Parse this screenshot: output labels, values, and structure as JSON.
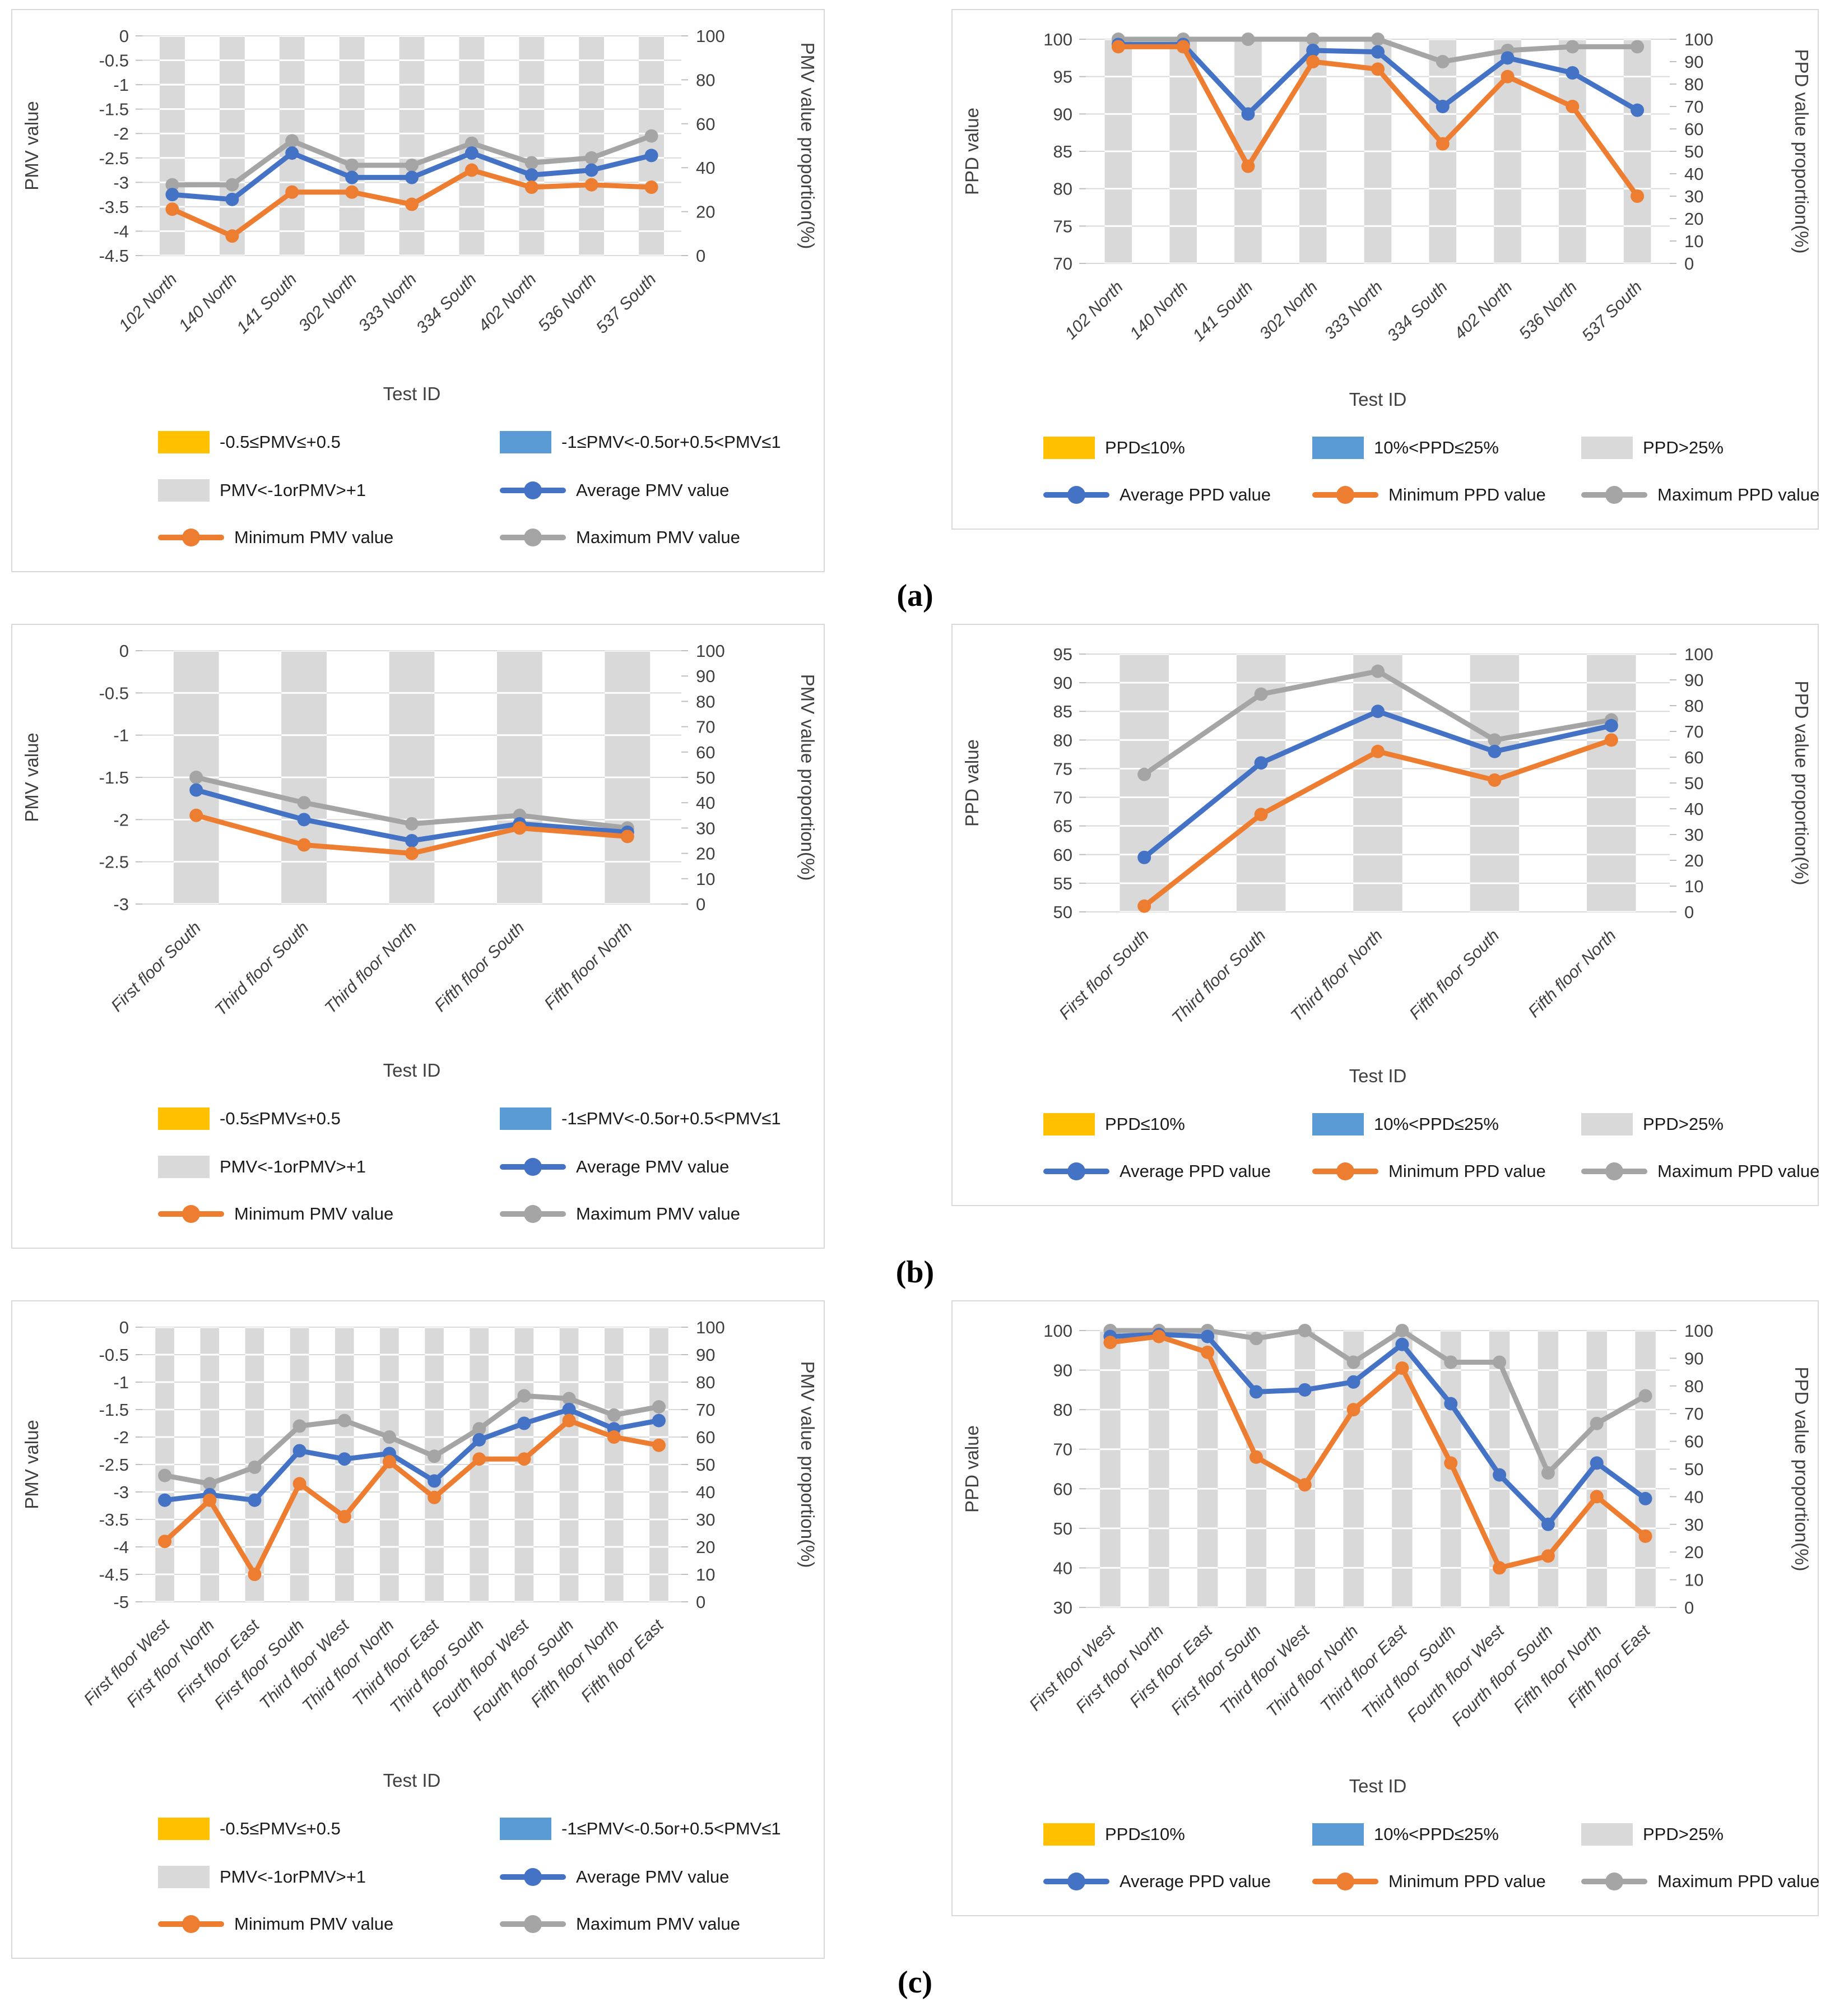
{
  "page": {
    "panel_labels": [
      "(a)",
      "(b)",
      "(c)"
    ]
  },
  "colors": {
    "average_line": "#4472C4",
    "minimum_line": "#ED7D31",
    "maximum_line": "#A5A5A5",
    "bar_fill": "#D9D9D9",
    "gridline": "#D9D9D9",
    "legend_yellow": "#FFC000",
    "legend_blue": "#5B9BD5",
    "legend_gray": "#D9D9D9",
    "tick_text": "#404040"
  },
  "chart_data": [
    {
      "type": "line",
      "panel": "a",
      "side": "left",
      "xlabel": "Test ID",
      "ylabel": "PMV value",
      "y2label": "PMV value proportion(%)",
      "categories": [
        "102 North",
        "140 North",
        "141 South",
        "302 North",
        "333 North",
        "334 South",
        "402 North",
        "536 North",
        "537 South"
      ],
      "left_axis": {
        "min": -4.5,
        "max": 0,
        "step": 0.5
      },
      "right_axis": {
        "min": 0,
        "max": 100,
        "step": 20
      },
      "bar_series": {
        "name": "PMV<-1orPMV>+1",
        "axis": "right",
        "values": [
          100,
          100,
          100,
          100,
          100,
          100,
          100,
          100,
          100
        ]
      },
      "series": [
        {
          "role": "max",
          "name": "Maximum PMV value",
          "values": [
            -3.05,
            -3.05,
            -2.15,
            -2.65,
            -2.65,
            -2.2,
            -2.6,
            -2.5,
            -2.05
          ]
        },
        {
          "role": "avg",
          "name": "Average PMV value",
          "values": [
            -3.25,
            -3.35,
            -2.4,
            -2.9,
            -2.9,
            -2.4,
            -2.85,
            -2.75,
            -2.45
          ]
        },
        {
          "role": "min",
          "name": "Minimum PMV value",
          "values": [
            -3.55,
            -4.1,
            -3.2,
            -3.2,
            -3.45,
            -2.75,
            -3.1,
            -3.05,
            -3.1
          ]
        }
      ],
      "legend": {
        "cols": 2,
        "rows": [
          [
            {
              "marker": "swatch",
              "color": "#FFC000",
              "label": "-0.5≤PMV≤+0.5"
            },
            {
              "marker": "swatch",
              "color": "#5B9BD5",
              "label": "-1≤PMV<-0.5or+0.5<PMV≤1"
            }
          ],
          [
            {
              "marker": "swatch",
              "color": "#D9D9D9",
              "label": "PMV<-1orPMV>+1"
            },
            {
              "marker": "line",
              "color": "#4472C4",
              "label": "Average PMV value"
            }
          ],
          [
            {
              "marker": "line",
              "color": "#ED7D31",
              "label": "Minimum PMV value"
            },
            {
              "marker": "line",
              "color": "#A5A5A5",
              "label": "Maximum PMV value"
            }
          ]
        ]
      }
    },
    {
      "type": "line",
      "panel": "a",
      "side": "right",
      "xlabel": "Test ID",
      "ylabel": "PPD value",
      "y2label": "PPD value proportion(%)",
      "categories": [
        "102 North",
        "140 North",
        "141 South",
        "302 North",
        "333 North",
        "334 South",
        "402 North",
        "536 North",
        "537 South"
      ],
      "left_axis": {
        "min": 70,
        "max": 100,
        "step": 5
      },
      "right_axis": {
        "min": 0,
        "max": 100,
        "step": 10
      },
      "bar_series": {
        "name": "PPD>25%",
        "axis": "right",
        "values": [
          100,
          100,
          100,
          100,
          100,
          100,
          100,
          100,
          100
        ]
      },
      "series": [
        {
          "role": "max",
          "name": "Maximum PPD value",
          "values": [
            100,
            100,
            100,
            100,
            100,
            97,
            98.5,
            99,
            99
          ]
        },
        {
          "role": "avg",
          "name": "Average PPD value",
          "values": [
            99.3,
            99.3,
            90,
            98.5,
            98.3,
            91,
            97.5,
            95.5,
            90.5
          ]
        },
        {
          "role": "min",
          "name": "Minimum PPD value",
          "values": [
            99,
            99,
            83,
            97,
            96,
            86,
            95,
            91,
            79
          ]
        }
      ],
      "legend": {
        "cols": 3,
        "rows": [
          [
            {
              "marker": "swatch",
              "color": "#FFC000",
              "label": "PPD≤10%"
            },
            {
              "marker": "swatch",
              "color": "#5B9BD5",
              "label": "10%<PPD≤25%"
            },
            {
              "marker": "swatch",
              "color": "#D9D9D9",
              "label": "PPD>25%"
            }
          ],
          [
            {
              "marker": "line",
              "color": "#4472C4",
              "label": "Average PPD value"
            },
            {
              "marker": "line",
              "color": "#ED7D31",
              "label": "Minimum PPD value"
            },
            {
              "marker": "line",
              "color": "#A5A5A5",
              "label": "Maximum PPD value"
            }
          ]
        ]
      }
    },
    {
      "type": "line",
      "panel": "b",
      "side": "left",
      "xlabel": "Test ID",
      "ylabel": "PMV value",
      "y2label": "PMV value proportion(%)",
      "categories": [
        "First floor South",
        "Third floor South",
        "Third floor North",
        "Fifth floor South",
        "Fifth floor North"
      ],
      "left_axis": {
        "min": -3,
        "max": 0,
        "step": 0.5
      },
      "right_axis": {
        "min": 0,
        "max": 100,
        "step": 10
      },
      "bar_series": {
        "name": "PMV<-1orPMV>+1",
        "axis": "right",
        "values": [
          100,
          100,
          100,
          100,
          100
        ]
      },
      "series": [
        {
          "role": "max",
          "name": "Maximum PMV value",
          "values": [
            -1.5,
            -1.8,
            -2.05,
            -1.95,
            -2.1
          ]
        },
        {
          "role": "avg",
          "name": "Average PMV value",
          "values": [
            -1.65,
            -2.0,
            -2.25,
            -2.05,
            -2.15
          ]
        },
        {
          "role": "min",
          "name": "Minimum PMV value",
          "values": [
            -1.95,
            -2.3,
            -2.4,
            -2.1,
            -2.2
          ]
        }
      ],
      "legend": {
        "cols": 2,
        "rows": [
          [
            {
              "marker": "swatch",
              "color": "#FFC000",
              "label": "-0.5≤PMV≤+0.5"
            },
            {
              "marker": "swatch",
              "color": "#5B9BD5",
              "label": "-1≤PMV<-0.5or+0.5<PMV≤1"
            }
          ],
          [
            {
              "marker": "swatch",
              "color": "#D9D9D9",
              "label": "PMV<-1orPMV>+1"
            },
            {
              "marker": "line",
              "color": "#4472C4",
              "label": "Average PMV value"
            }
          ],
          [
            {
              "marker": "line",
              "color": "#ED7D31",
              "label": "Minimum PMV value"
            },
            {
              "marker": "line",
              "color": "#A5A5A5",
              "label": "Maximum PMV value"
            }
          ]
        ]
      }
    },
    {
      "type": "line",
      "panel": "b",
      "side": "right",
      "xlabel": "Test ID",
      "ylabel": "PPD value",
      "y2label": "PPD value proportion(%)",
      "categories": [
        "First floor South",
        "Third floor South",
        "Third floor North",
        "Fifth floor South",
        "Fifth floor North"
      ],
      "left_axis": {
        "min": 50,
        "max": 95,
        "step": 5
      },
      "right_axis": {
        "min": 0,
        "max": 100,
        "step": 10
      },
      "bar_series": {
        "name": "PPD>25%",
        "axis": "right",
        "values": [
          100,
          100,
          100,
          100,
          100
        ]
      },
      "series": [
        {
          "role": "max",
          "name": "Maximum PPD value",
          "values": [
            74,
            88,
            92,
            80,
            83.5
          ]
        },
        {
          "role": "avg",
          "name": "Average PPD value",
          "values": [
            59.5,
            76,
            85,
            78,
            82.5
          ]
        },
        {
          "role": "min",
          "name": "Minimum PPD value",
          "values": [
            51,
            67,
            78,
            73,
            80
          ]
        }
      ],
      "legend": {
        "cols": 3,
        "rows": [
          [
            {
              "marker": "swatch",
              "color": "#FFC000",
              "label": "PPD≤10%"
            },
            {
              "marker": "swatch",
              "color": "#5B9BD5",
              "label": "10%<PPD≤25%"
            },
            {
              "marker": "swatch",
              "color": "#D9D9D9",
              "label": "PPD>25%"
            }
          ],
          [
            {
              "marker": "line",
              "color": "#4472C4",
              "label": "Average PPD value"
            },
            {
              "marker": "line",
              "color": "#ED7D31",
              "label": "Minimum PPD value"
            },
            {
              "marker": "line",
              "color": "#A5A5A5",
              "label": "Maximum PPD value"
            }
          ]
        ]
      }
    },
    {
      "type": "line",
      "panel": "c",
      "side": "left",
      "xlabel": "Test ID",
      "ylabel": "PMV value",
      "y2label": "PMV value proportion(%)",
      "categories": [
        "First floor West",
        "First floor North",
        "First floor East",
        "First floor South",
        "Third floor West",
        "Third floor North",
        "Third floor East",
        "Third floor South",
        "Fourth floor West",
        "Fourth floor South",
        "Fifth floor North",
        "Fifth floor East"
      ],
      "left_axis": {
        "min": -5,
        "max": 0,
        "step": 0.5
      },
      "right_axis": {
        "min": 0,
        "max": 100,
        "step": 10
      },
      "bar_series": {
        "name": "PMV<-1orPMV>+1",
        "axis": "right",
        "values": [
          100,
          100,
          100,
          100,
          100,
          100,
          100,
          100,
          100,
          100,
          100,
          100
        ]
      },
      "series": [
        {
          "role": "max",
          "name": "Maximum PMV value",
          "values": [
            -2.7,
            -2.85,
            -2.55,
            -1.8,
            -1.7,
            -2.0,
            -2.35,
            -1.85,
            -1.25,
            -1.3,
            -1.6,
            -1.45
          ]
        },
        {
          "role": "avg",
          "name": "Average PMV value",
          "values": [
            -3.15,
            -3.05,
            -3.15,
            -2.25,
            -2.4,
            -2.3,
            -2.8,
            -2.05,
            -1.75,
            -1.5,
            -1.85,
            -1.7
          ]
        },
        {
          "role": "min",
          "name": "Minimum PMV value",
          "values": [
            -3.9,
            -3.15,
            -4.5,
            -2.85,
            -3.45,
            -2.45,
            -3.1,
            -2.4,
            -2.4,
            -1.7,
            -2.0,
            -2.15
          ]
        }
      ],
      "legend": {
        "cols": 2,
        "rows": [
          [
            {
              "marker": "swatch",
              "color": "#FFC000",
              "label": "-0.5≤PMV≤+0.5"
            },
            {
              "marker": "swatch",
              "color": "#5B9BD5",
              "label": "-1≤PMV<-0.5or+0.5<PMV≤1"
            }
          ],
          [
            {
              "marker": "swatch",
              "color": "#D9D9D9",
              "label": "PMV<-1orPMV>+1"
            },
            {
              "marker": "line",
              "color": "#4472C4",
              "label": "Average PMV value"
            }
          ],
          [
            {
              "marker": "line",
              "color": "#ED7D31",
              "label": "Minimum PMV value"
            },
            {
              "marker": "line",
              "color": "#A5A5A5",
              "label": "Maximum PMV value"
            }
          ]
        ]
      }
    },
    {
      "type": "line",
      "panel": "c",
      "side": "right",
      "xlabel": "Test ID",
      "ylabel": "PPD value",
      "y2label": "PPD value proportion(%)",
      "categories": [
        "First floor West",
        "First floor North",
        "First floor East",
        "First floor South",
        "Third floor West",
        "Third floor North",
        "Third floor East",
        "Third floor South",
        "Fourth floor West",
        "Fourth floor South",
        "Fifth floor North",
        "Fifth floor East"
      ],
      "left_axis": {
        "min": 30,
        "max": 100,
        "step": 10
      },
      "right_axis": {
        "min": 0,
        "max": 100,
        "step": 10
      },
      "bar_series": {
        "name": "PPD>25%",
        "axis": "right",
        "values": [
          100,
          100,
          100,
          100,
          100,
          100,
          100,
          100,
          100,
          100,
          100,
          100
        ]
      },
      "series": [
        {
          "role": "max",
          "name": "Maximum PPD value",
          "values": [
            100,
            100,
            100,
            98,
            100,
            92,
            100,
            92,
            92,
            64,
            76.5,
            83.5
          ]
        },
        {
          "role": "avg",
          "name": "Average PPD value",
          "values": [
            98.5,
            99,
            98.5,
            84.5,
            85,
            87,
            96.5,
            81.5,
            63.5,
            51,
            66.5,
            57.5
          ]
        },
        {
          "role": "min",
          "name": "Minimum PPD value",
          "values": [
            97,
            98.5,
            94.5,
            68,
            61,
            80,
            90.5,
            66.5,
            40,
            43,
            58,
            48
          ]
        }
      ],
      "legend": {
        "cols": 3,
        "rows": [
          [
            {
              "marker": "swatch",
              "color": "#FFC000",
              "label": "PPD≤10%"
            },
            {
              "marker": "swatch",
              "color": "#5B9BD5",
              "label": "10%<PPD≤25%"
            },
            {
              "marker": "swatch",
              "color": "#D9D9D9",
              "label": "PPD>25%"
            }
          ],
          [
            {
              "marker": "line",
              "color": "#4472C4",
              "label": "Average PPD value"
            },
            {
              "marker": "line",
              "color": "#ED7D31",
              "label": "Minimum PPD value"
            },
            {
              "marker": "line",
              "color": "#A5A5A5",
              "label": "Maximum PPD value"
            }
          ]
        ]
      }
    }
  ]
}
